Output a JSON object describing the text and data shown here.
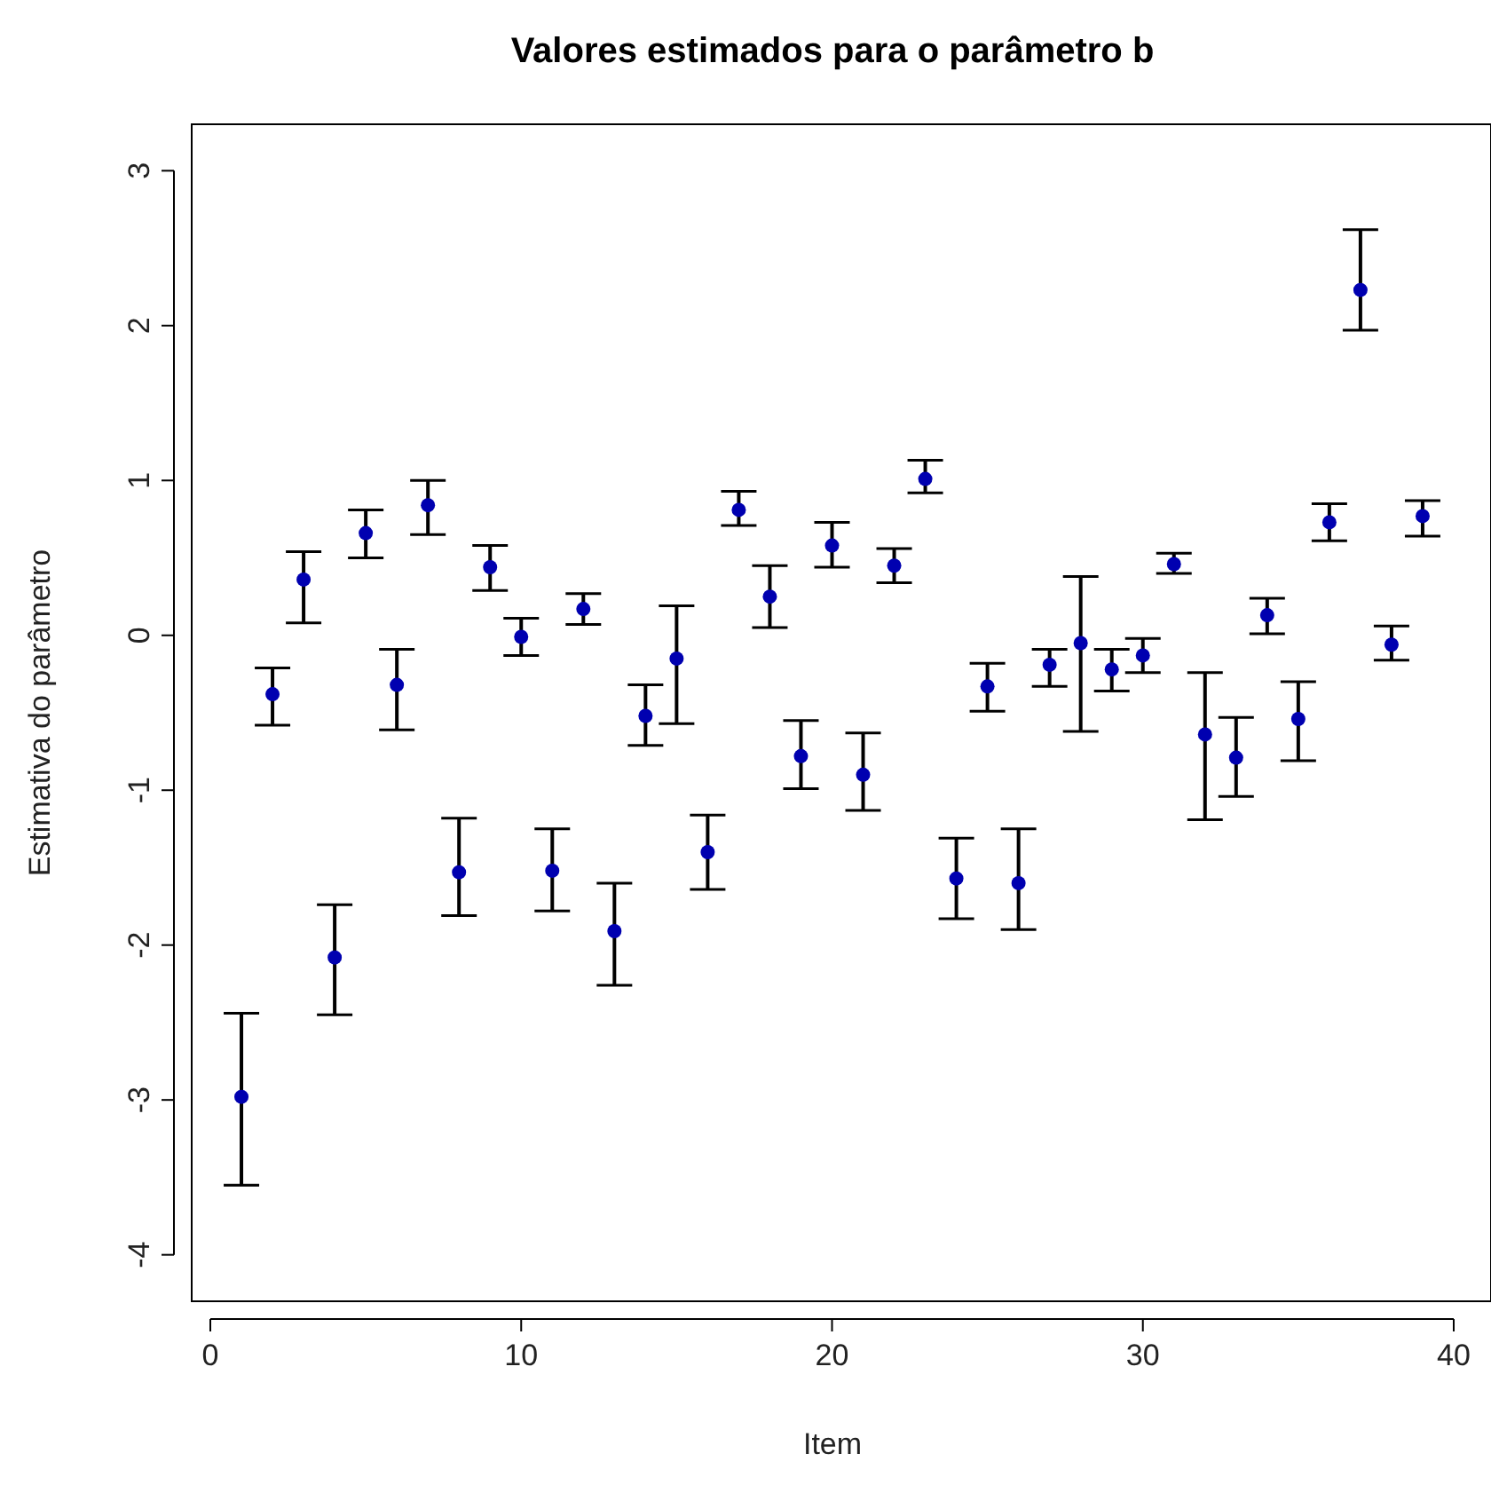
{
  "chart_data": {
    "type": "scatter",
    "title": "Valores estimados para o parâmetro b",
    "xlabel": "Item",
    "ylabel": "Estimativa do parâmetro",
    "xlim": [
      -0.6,
      41.2
    ],
    "ylim": [
      -4.3,
      3.3
    ],
    "xticks": [
      0,
      10,
      20,
      30,
      40
    ],
    "yticks": [
      -4,
      -3,
      -2,
      -1,
      0,
      1,
      2,
      3
    ],
    "grid": false,
    "marker": "circle",
    "series": [
      {
        "color": "#0000b0",
        "x": [
          1,
          2,
          3,
          4,
          5,
          6,
          7,
          8,
          9,
          10,
          11,
          12,
          13,
          14,
          15,
          16,
          17,
          18,
          19,
          20,
          21,
          22,
          23,
          24,
          25,
          26,
          27,
          28,
          29,
          30,
          31,
          32,
          33,
          34,
          35,
          36,
          37,
          38,
          39
        ],
        "values": [
          -2.98,
          -0.38,
          0.36,
          -2.08,
          0.66,
          -0.32,
          0.84,
          -1.53,
          0.44,
          -0.01,
          -1.52,
          0.17,
          -1.91,
          -0.52,
          -0.15,
          -1.4,
          0.81,
          0.25,
          -0.78,
          0.58,
          -0.9,
          0.45,
          1.01,
          -1.57,
          -0.33,
          -1.6,
          -0.19,
          -0.05,
          -0.22,
          -0.13,
          0.46,
          -0.64,
          -0.79,
          0.13,
          -0.54,
          0.73,
          2.23,
          -0.06,
          0.77
        ],
        "errors": [
          [
            -3.55,
            -2.44
          ],
          [
            -0.58,
            -0.21
          ],
          [
            0.08,
            0.54
          ],
          [
            -2.45,
            -1.74
          ],
          [
            0.5,
            0.81
          ],
          [
            -0.61,
            -0.09
          ],
          [
            0.65,
            1.0
          ],
          [
            -1.81,
            -1.18
          ],
          [
            0.29,
            0.58
          ],
          [
            -0.13,
            0.11
          ],
          [
            -1.78,
            -1.25
          ],
          [
            0.07,
            0.27
          ],
          [
            -2.26,
            -1.6
          ],
          [
            -0.71,
            -0.32
          ],
          [
            -0.57,
            0.19
          ],
          [
            -1.64,
            -1.16
          ],
          [
            0.71,
            0.93
          ],
          [
            0.05,
            0.45
          ],
          [
            -0.99,
            -0.55
          ],
          [
            0.44,
            0.73
          ],
          [
            -1.13,
            -0.63
          ],
          [
            0.34,
            0.56
          ],
          [
            0.92,
            1.13
          ],
          [
            -1.83,
            -1.31
          ],
          [
            -0.49,
            -0.18
          ],
          [
            -1.9,
            -1.25
          ],
          [
            -0.33,
            -0.09
          ],
          [
            -0.62,
            0.38
          ],
          [
            -0.36,
            -0.09
          ],
          [
            -0.24,
            -0.02
          ],
          [
            0.4,
            0.53
          ],
          [
            -1.19,
            -0.24
          ],
          [
            -1.04,
            -0.53
          ],
          [
            0.01,
            0.24
          ],
          [
            -0.81,
            -0.3
          ],
          [
            0.61,
            0.85
          ],
          [
            1.97,
            2.62
          ],
          [
            -0.16,
            0.06
          ],
          [
            0.64,
            0.87
          ]
        ]
      }
    ]
  }
}
